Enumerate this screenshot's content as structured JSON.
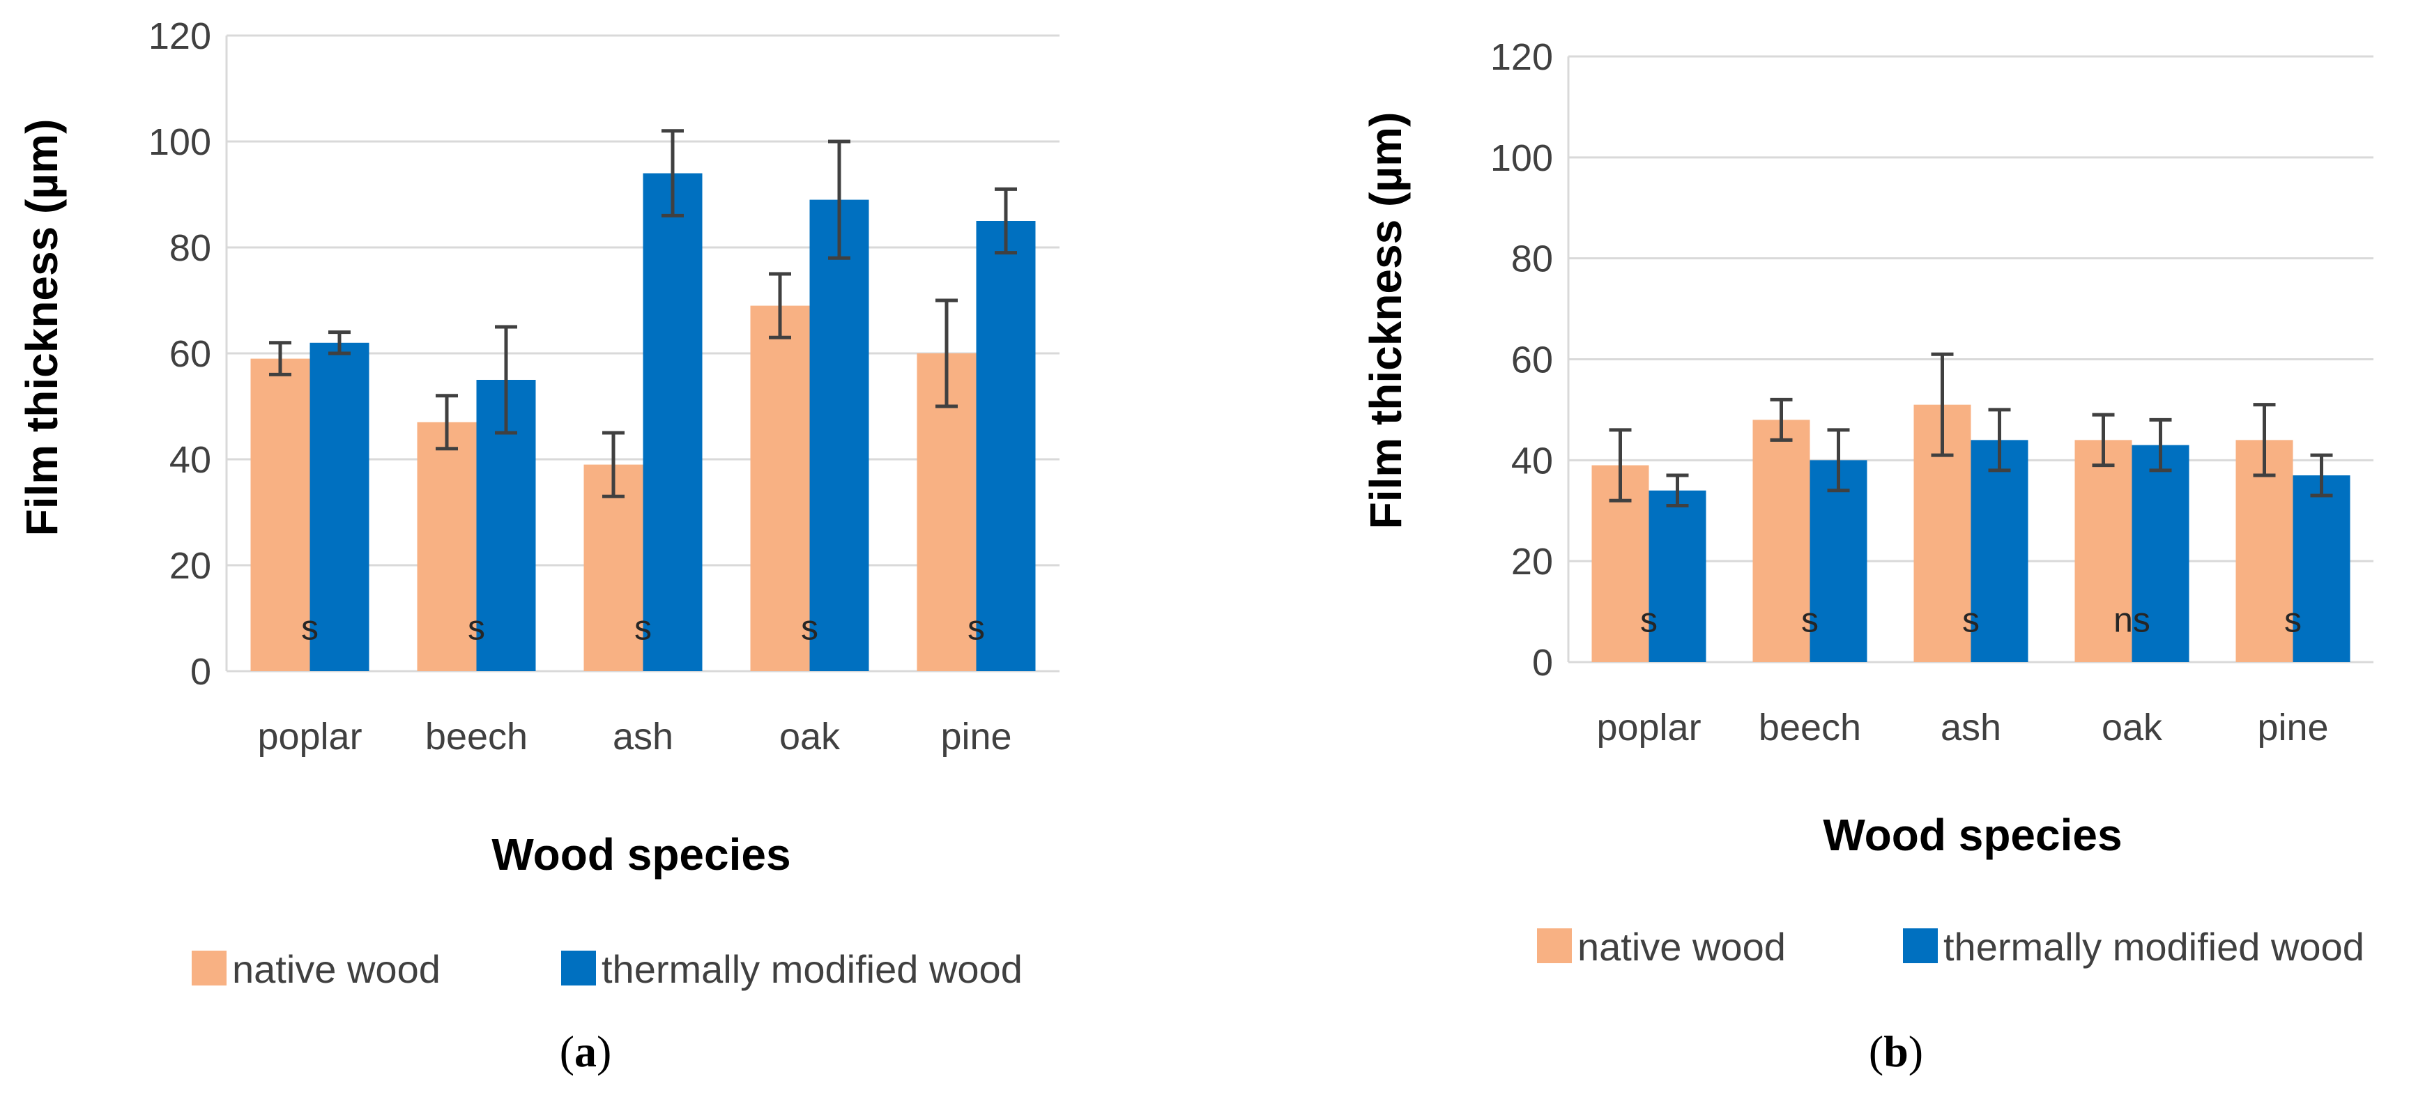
{
  "colors": {
    "native": "#f8b183",
    "thermal": "#0070c0",
    "grid": "#d9d9d9",
    "error": "#404040"
  },
  "chart_data": [
    {
      "type": "bar",
      "panel": "a",
      "categories": [
        "poplar",
        "beech",
        "ash",
        "oak",
        "pine"
      ],
      "series": [
        {
          "name": "native wood",
          "values": [
            59,
            47,
            39,
            69,
            60
          ],
          "errors": [
            3,
            5,
            6,
            6,
            10
          ]
        },
        {
          "name": "thermally modified wood",
          "values": [
            62,
            55,
            94,
            89,
            85
          ],
          "errors": [
            2,
            10,
            8,
            11,
            6
          ]
        }
      ],
      "significance": [
        "s",
        "s",
        "s",
        "s",
        "s"
      ],
      "yticks": [
        "0",
        "20",
        "40",
        "60",
        "80",
        "100",
        "120"
      ],
      "ylabel": "Film thickness (µm)",
      "xlabel": "Wood species",
      "ylim": [
        0,
        120
      ],
      "grid": true,
      "legend": "bottom"
    },
    {
      "type": "bar",
      "panel": "b",
      "categories": [
        "poplar",
        "beech",
        "ash",
        "oak",
        "pine"
      ],
      "series": [
        {
          "name": "native wood",
          "values": [
            39,
            48,
            51,
            44,
            44
          ],
          "errors": [
            7,
            4,
            10,
            5,
            7
          ]
        },
        {
          "name": "thermally modified wood",
          "values": [
            34,
            40,
            44,
            43,
            37
          ],
          "errors": [
            3,
            6,
            6,
            5,
            4
          ]
        }
      ],
      "significance": [
        "s",
        "s",
        "s",
        "ns",
        "s"
      ],
      "yticks": [
        "0",
        "20",
        "40",
        "60",
        "80",
        "100",
        "120"
      ],
      "ylabel": "Film thickness (µm)",
      "xlabel": "Wood species",
      "ylim": [
        0,
        120
      ],
      "grid": true,
      "legend": "bottom"
    }
  ],
  "panels": [
    {
      "label_open": "(",
      "label_letter": "a",
      "label_close": ")"
    },
    {
      "label_open": "(",
      "label_letter": "b",
      "label_close": ")"
    }
  ]
}
